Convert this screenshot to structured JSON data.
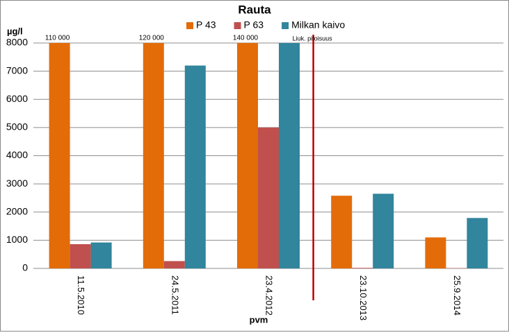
{
  "chart_data": {
    "type": "bar",
    "title": "Rauta",
    "y_label": "µg/l",
    "x_label": "pvm",
    "categories": [
      "11.5.2010",
      "24.5.2011",
      "23.4.2012",
      "23.10.2013",
      "25.9.2014"
    ],
    "series": [
      {
        "name": "P 43",
        "color": "#e36c09",
        "values": [
          110000,
          120000,
          140000,
          2580,
          1100
        ],
        "value_labels": [
          "110 000",
          "120 000",
          "140 000",
          null,
          null
        ]
      },
      {
        "name": "P 63",
        "color": "#c0504d",
        "values": [
          860,
          260,
          5000,
          20,
          10
        ]
      },
      {
        "name": "Milkan kaivo",
        "color": "#31859c",
        "values": [
          920,
          7200,
          8000,
          2650,
          1790
        ]
      }
    ],
    "ylim": [
      0,
      8000
    ],
    "yticks": [
      0,
      1000,
      2000,
      3000,
      4000,
      5000,
      6000,
      7000,
      8000
    ],
    "grid": true,
    "annotation": "Liuk. pitoisuus",
    "annotation_color": "#c00000"
  }
}
